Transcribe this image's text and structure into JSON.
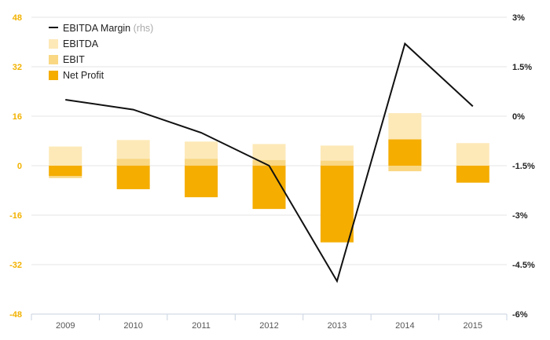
{
  "chart_data": {
    "type": "bar",
    "categories": [
      "2009",
      "2010",
      "2011",
      "2012",
      "2013",
      "2014",
      "2015"
    ],
    "series": [
      {
        "name": "EBITDA",
        "kind": "bar",
        "axis": "left",
        "color": "#fde9b8",
        "values": [
          6.2,
          8.3,
          7.8,
          7.0,
          6.5,
          17.0,
          7.3
        ]
      },
      {
        "name": "EBIT",
        "kind": "bar",
        "axis": "left",
        "color": "#f9d783",
        "values": [
          -4.0,
          2.2,
          2.2,
          1.8,
          1.6,
          -1.8,
          -0.2
        ]
      },
      {
        "name": "Net Profit",
        "kind": "bar",
        "axis": "left",
        "color": "#f5ad00",
        "values": [
          -3.3,
          -7.6,
          -10.2,
          -14.0,
          -24.8,
          8.5,
          -5.5
        ]
      },
      {
        "name": "EBITDA Margin",
        "note": "(rhs)",
        "kind": "line",
        "axis": "right",
        "color": "#111111",
        "values": [
          0.5,
          0.2,
          -0.5,
          -1.5,
          -5.0,
          2.2,
          0.3
        ]
      }
    ],
    "left_axis": {
      "ylim": [
        -48,
        48
      ],
      "ticks": [
        "48",
        "32",
        "16",
        "0",
        "-16",
        "-32",
        "-48"
      ]
    },
    "right_axis": {
      "ylim": [
        -6,
        3
      ],
      "ticks": [
        "3%",
        "1.5%",
        "0%",
        "-1.5%",
        "-3%",
        "-4.5%",
        "-6%"
      ]
    },
    "legend": {
      "placement": "top-left"
    },
    "grid": true
  },
  "colors": {
    "left_tick": "#f2b200",
    "right_tick": "#222222",
    "grid": "#e6e6e6",
    "axis": "#c9d3e0"
  }
}
